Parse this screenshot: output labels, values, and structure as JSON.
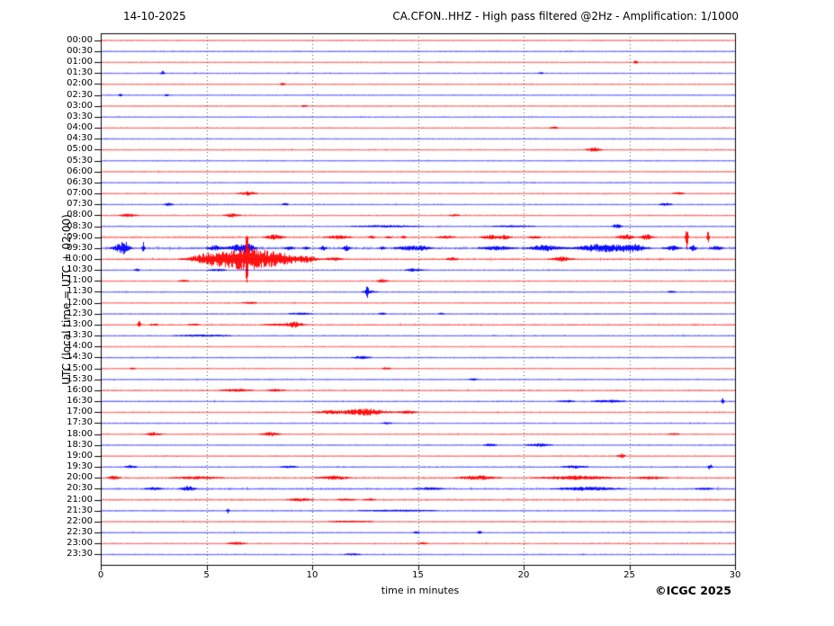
{
  "header": {
    "date": "14-10-2025",
    "title": "CA.CFON..HHZ - High pass filtered @2Hz - Amplification: 1/1000"
  },
  "axes": {
    "y_label": "UTC (local time = UTC + 02:00)",
    "x_label": "time in minutes",
    "x_ticks": [
      "0",
      "5",
      "10",
      "15",
      "20",
      "25",
      "30"
    ]
  },
  "footer": {
    "copyright": "©ICGC 2025"
  },
  "colors": {
    "trace_red": "#ff0000",
    "trace_blue": "#0000ff",
    "grid": "#555555",
    "frame": "#000000"
  },
  "chart_data": {
    "type": "line",
    "subtype": "helicorder-seismogram",
    "title": "CA.CFON..HHZ - High pass filtered @2Hz - Amplification: 1/1000",
    "date": "14-10-2025",
    "xlabel": "time in minutes",
    "ylabel": "UTC (local time = UTC + 02:00)",
    "x_min": 0,
    "x_max": 30,
    "x_tick_values": [
      0,
      5,
      10,
      15,
      20,
      25,
      30
    ],
    "x_gridlines": [
      5,
      10,
      15,
      20,
      25
    ],
    "grid": "dotted-vertical",
    "legend": "none",
    "row_minutes": 30,
    "events_format": "[start_minute, amplitude_px, halfwidth_minutes]",
    "rows": [
      {
        "label": "00:00",
        "color": "red",
        "noise": 0.5,
        "events": []
      },
      {
        "label": "00:30",
        "color": "blue",
        "noise": 0.5,
        "events": []
      },
      {
        "label": "01:00",
        "color": "red",
        "noise": 0.5,
        "events": [
          [
            25.3,
            2,
            0.08
          ]
        ]
      },
      {
        "label": "01:30",
        "color": "blue",
        "noise": 0.5,
        "events": [
          [
            2.9,
            2.5,
            0.07
          ],
          [
            20.8,
            1.3,
            0.1
          ]
        ]
      },
      {
        "label": "02:00",
        "color": "red",
        "noise": 0.5,
        "events": [
          [
            8.6,
            1.5,
            0.1
          ]
        ]
      },
      {
        "label": "02:30",
        "color": "blue",
        "noise": 0.5,
        "events": [
          [
            0.9,
            2,
            0.06
          ],
          [
            3.1,
            1.4,
            0.08
          ]
        ]
      },
      {
        "label": "03:00",
        "color": "red",
        "noise": 0.5,
        "events": [
          [
            9.6,
            1.4,
            0.1
          ]
        ]
      },
      {
        "label": "03:30",
        "color": "blue",
        "noise": 0.45,
        "events": []
      },
      {
        "label": "04:00",
        "color": "red",
        "noise": 0.55,
        "events": [
          [
            21.4,
            1.4,
            0.15
          ]
        ]
      },
      {
        "label": "04:30",
        "color": "blue",
        "noise": 0.45,
        "events": []
      },
      {
        "label": "05:00",
        "color": "red",
        "noise": 0.55,
        "events": [
          [
            23.3,
            2.2,
            0.25
          ]
        ]
      },
      {
        "label": "05:30",
        "color": "blue",
        "noise": 0.45,
        "events": []
      },
      {
        "label": "06:00",
        "color": "red",
        "noise": 0.5,
        "events": []
      },
      {
        "label": "06:30",
        "color": "blue",
        "noise": 0.5,
        "events": []
      },
      {
        "label": "07:00",
        "color": "red",
        "noise": 0.55,
        "events": [
          [
            6.9,
            2.2,
            0.3
          ],
          [
            27.3,
            1.4,
            0.2
          ]
        ]
      },
      {
        "label": "07:30",
        "color": "blue",
        "noise": 0.55,
        "events": [
          [
            3.2,
            1.8,
            0.15
          ],
          [
            8.7,
            1.8,
            0.1
          ],
          [
            26.7,
            1.8,
            0.2
          ]
        ]
      },
      {
        "label": "08:00",
        "color": "red",
        "noise": 0.6,
        "events": [
          [
            1.3,
            1.8,
            0.3
          ],
          [
            6.2,
            2.2,
            0.25
          ],
          [
            16.7,
            1.2,
            0.2
          ]
        ]
      },
      {
        "label": "08:30",
        "color": "blue",
        "noise": 0.6,
        "events": [
          [
            13.5,
            1.3,
            1.2
          ],
          [
            19.5,
            1.1,
            0.8
          ],
          [
            24.4,
            2.8,
            0.15
          ]
        ]
      },
      {
        "label": "09:00",
        "color": "red",
        "noise": 0.9,
        "events": [
          [
            8.2,
            2.8,
            0.3
          ],
          [
            11.2,
            2.2,
            0.4
          ],
          [
            12.8,
            1.8,
            0.12
          ],
          [
            13.6,
            1.8,
            0.1
          ],
          [
            14.3,
            1.8,
            0.1
          ],
          [
            16.3,
            1.8,
            0.3
          ],
          [
            18.4,
            2.6,
            0.3
          ],
          [
            19.1,
            2.2,
            0.2
          ],
          [
            20.5,
            1.8,
            0.2
          ],
          [
            24.8,
            3.2,
            0.25
          ],
          [
            25.8,
            3.2,
            0.2
          ],
          [
            27.7,
            13,
            0.045
          ],
          [
            28.7,
            6,
            0.045
          ]
        ]
      },
      {
        "label": "09:30",
        "color": "blue",
        "noise": 1.4,
        "events": [
          [
            0.9,
            4.5,
            0.25
          ],
          [
            1.15,
            5.5,
            0.12
          ],
          [
            2.0,
            6.5,
            0.05
          ],
          [
            5.4,
            3,
            0.25
          ],
          [
            6.5,
            4,
            0.35
          ],
          [
            7.0,
            3.5,
            0.2
          ],
          [
            8.9,
            2.2,
            0.15
          ],
          [
            9.7,
            2.2,
            0.1
          ],
          [
            10.5,
            2.8,
            0.1
          ],
          [
            11.6,
            3.2,
            0.12
          ],
          [
            13.3,
            2.2,
            0.1
          ],
          [
            14.5,
            2.6,
            0.4
          ],
          [
            15.2,
            2.2,
            0.3
          ],
          [
            18.7,
            2.6,
            0.5
          ],
          [
            21.0,
            3.5,
            0.5
          ],
          [
            23.7,
            4.5,
            0.8
          ],
          [
            25.2,
            3.8,
            0.4
          ],
          [
            27.0,
            2.8,
            0.25
          ],
          [
            28.0,
            3.5,
            0.1
          ],
          [
            29.1,
            2.6,
            0.2
          ]
        ]
      },
      {
        "label": "10:00",
        "color": "red",
        "noise": 1.0,
        "events": [
          [
            5.0,
            4.5,
            0.6
          ],
          [
            6.8,
            11,
            1.0
          ],
          [
            6.9,
            21,
            0.04
          ],
          [
            8.5,
            4.5,
            0.8
          ],
          [
            9.8,
            2.2,
            0.3
          ],
          [
            11.0,
            1.8,
            0.3
          ],
          [
            16.6,
            1.8,
            0.2
          ],
          [
            21.8,
            2.6,
            0.35
          ]
        ]
      },
      {
        "label": "10:30",
        "color": "blue",
        "noise": 0.6,
        "events": [
          [
            1.7,
            1.8,
            0.1
          ],
          [
            5.5,
            1.4,
            0.3
          ],
          [
            14.8,
            1.8,
            0.3
          ]
        ]
      },
      {
        "label": "11:00",
        "color": "red",
        "noise": 0.55,
        "events": [
          [
            3.9,
            1.2,
            0.2
          ],
          [
            13.3,
            2.2,
            0.18
          ]
        ]
      },
      {
        "label": "11:30",
        "color": "blue",
        "noise": 0.55,
        "events": [
          [
            12.6,
            6.5,
            0.05
          ],
          [
            12.7,
            1.8,
            0.25
          ],
          [
            27.0,
            1.3,
            0.15
          ]
        ]
      },
      {
        "label": "12:00",
        "color": "red",
        "noise": 0.5,
        "events": [
          [
            7.0,
            1.1,
            0.3
          ]
        ]
      },
      {
        "label": "12:30",
        "color": "blue",
        "noise": 0.6,
        "events": [
          [
            9.4,
            1.3,
            0.4
          ],
          [
            13.3,
            1.3,
            0.15
          ],
          [
            16.1,
            1.3,
            0.1
          ]
        ]
      },
      {
        "label": "13:00",
        "color": "red",
        "noise": 0.75,
        "events": [
          [
            1.8,
            4.5,
            0.05
          ],
          [
            2.5,
            1.4,
            0.15
          ],
          [
            4.4,
            1.4,
            0.2
          ],
          [
            8.5,
            1.4,
            0.6
          ],
          [
            9.2,
            2.6,
            0.25
          ]
        ]
      },
      {
        "label": "13:30",
        "color": "blue",
        "noise": 0.6,
        "events": [
          [
            4.8,
            1.2,
            1.0
          ]
        ]
      },
      {
        "label": "14:00",
        "color": "red",
        "noise": 0.45,
        "events": []
      },
      {
        "label": "14:30",
        "color": "blue",
        "noise": 0.55,
        "events": [
          [
            12.3,
            1.8,
            0.3
          ]
        ]
      },
      {
        "label": "15:00",
        "color": "red",
        "noise": 0.5,
        "events": [
          [
            1.5,
            1.4,
            0.1
          ],
          [
            13.5,
            1.4,
            0.15
          ]
        ]
      },
      {
        "label": "15:30",
        "color": "blue",
        "noise": 0.55,
        "events": [
          [
            17.6,
            1.4,
            0.15
          ]
        ]
      },
      {
        "label": "16:00",
        "color": "red",
        "noise": 0.7,
        "events": [
          [
            6.4,
            1.8,
            0.5
          ],
          [
            8.3,
            1.6,
            0.3
          ]
        ]
      },
      {
        "label": "16:30",
        "color": "blue",
        "noise": 0.6,
        "events": [
          [
            22.0,
            1.4,
            0.3
          ],
          [
            24.0,
            1.8,
            0.5
          ],
          [
            29.4,
            3.5,
            0.05
          ]
        ]
      },
      {
        "label": "17:00",
        "color": "red",
        "noise": 0.6,
        "events": [
          [
            10.8,
            1.8,
            0.5
          ],
          [
            12.5,
            3.8,
            0.7
          ],
          [
            14.5,
            1.8,
            0.3
          ]
        ]
      },
      {
        "label": "17:30",
        "color": "blue",
        "noise": 0.5,
        "events": [
          [
            13.5,
            1.2,
            0.2
          ]
        ]
      },
      {
        "label": "18:00",
        "color": "red",
        "noise": 0.55,
        "events": [
          [
            2.5,
            2.2,
            0.25
          ],
          [
            8.0,
            2.2,
            0.3
          ],
          [
            27.1,
            1.4,
            0.2
          ]
        ]
      },
      {
        "label": "18:30",
        "color": "blue",
        "noise": 0.55,
        "events": [
          [
            18.4,
            1.8,
            0.2
          ],
          [
            20.7,
            1.8,
            0.4
          ]
        ]
      },
      {
        "label": "19:00",
        "color": "red",
        "noise": 0.6,
        "events": [
          [
            24.6,
            2.6,
            0.12
          ]
        ]
      },
      {
        "label": "19:30",
        "color": "blue",
        "noise": 0.6,
        "events": [
          [
            1.4,
            1.8,
            0.2
          ],
          [
            8.9,
            1.4,
            0.3
          ],
          [
            22.4,
            1.8,
            0.4
          ],
          [
            28.8,
            3.2,
            0.07
          ]
        ]
      },
      {
        "label": "20:00",
        "color": "red",
        "noise": 1.0,
        "events": [
          [
            0.6,
            2.2,
            0.2
          ],
          [
            4.5,
            1.8,
            0.8
          ],
          [
            11.0,
            2.2,
            0.5
          ],
          [
            17.8,
            2.6,
            0.6
          ],
          [
            22.5,
            2.2,
            1.2
          ],
          [
            26.0,
            1.8,
            0.5
          ]
        ]
      },
      {
        "label": "20:30",
        "color": "blue",
        "noise": 0.95,
        "events": [
          [
            2.5,
            1.8,
            0.3
          ],
          [
            4.1,
            2.8,
            0.25
          ],
          [
            15.5,
            1.6,
            0.5
          ],
          [
            23.0,
            2.2,
            1.0
          ],
          [
            28.5,
            1.4,
            0.3
          ]
        ]
      },
      {
        "label": "21:00",
        "color": "red",
        "noise": 0.85,
        "events": [
          [
            9.4,
            1.8,
            0.4
          ],
          [
            11.6,
            1.4,
            0.3
          ],
          [
            12.7,
            1.4,
            0.2
          ]
        ]
      },
      {
        "label": "21:30",
        "color": "blue",
        "noise": 0.6,
        "events": [
          [
            6.0,
            3.2,
            0.05
          ],
          [
            14.0,
            1.0,
            1.5
          ]
        ]
      },
      {
        "label": "22:00",
        "color": "red",
        "noise": 0.55,
        "events": [
          [
            11.8,
            1.1,
            0.8
          ]
        ]
      },
      {
        "label": "22:30",
        "color": "blue",
        "noise": 0.5,
        "events": [
          [
            14.9,
            1.4,
            0.1
          ],
          [
            17.9,
            1.8,
            0.07
          ]
        ]
      },
      {
        "label": "23:00",
        "color": "red",
        "noise": 0.6,
        "events": [
          [
            6.4,
            1.8,
            0.3
          ],
          [
            15.2,
            1.2,
            0.2
          ]
        ]
      },
      {
        "label": "23:30",
        "color": "blue",
        "noise": 0.55,
        "events": [
          [
            11.9,
            1.3,
            0.3
          ]
        ]
      }
    ]
  }
}
